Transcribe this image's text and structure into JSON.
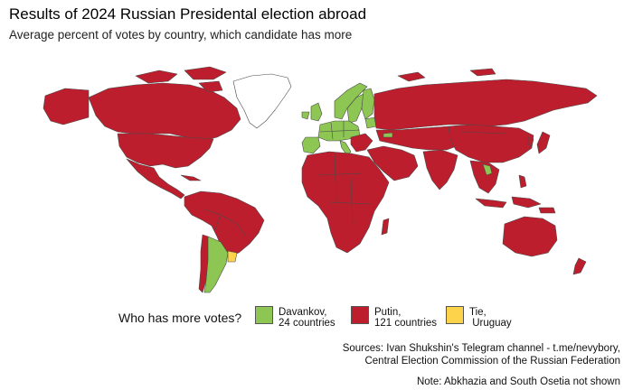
{
  "title": "Results of 2024 Russian Presidental election abroad",
  "subtitle": "Average percent of votes by country, which candidate has more",
  "colors": {
    "davankov": "#8DC652",
    "putin": "#BD1E2D",
    "tie": "#FCD34A",
    "no_data": "#FFFFFF",
    "border": "#4a4a4a"
  },
  "legend": {
    "title": "Who has more votes?",
    "items": [
      {
        "key": "davankov",
        "line1": "Davankov,",
        "line2": "24 countries"
      },
      {
        "key": "putin",
        "line1": "Putin,",
        "line2": "121 countries"
      },
      {
        "key": "tie",
        "line1": "Tie,",
        "line2": " Uruguay"
      }
    ]
  },
  "source": {
    "line1": "Sources: Ivan Shukshin's Telegram channel - t.me/nevybory,",
    "line2": "Central Election Commission of the Russian Federation"
  },
  "note": "Note: Abkhazia and South Osetia not shown",
  "map_data": {
    "Davankov": [
      "Argentina",
      "Norway",
      "Sweden",
      "Finland",
      "Estonia",
      "Latvia",
      "Lithuania",
      "Poland",
      "Germany",
      "Netherlands",
      "Belgium",
      "Luxembourg",
      "France",
      "United Kingdom",
      "Ireland",
      "Spain",
      "Portugal",
      "Switzerland",
      "Austria",
      "Czech Republic",
      "Slovakia",
      "Slovenia",
      "Georgia",
      "Laos"
    ],
    "Putin_count": 121,
    "Tie": [
      "Uruguay"
    ]
  }
}
